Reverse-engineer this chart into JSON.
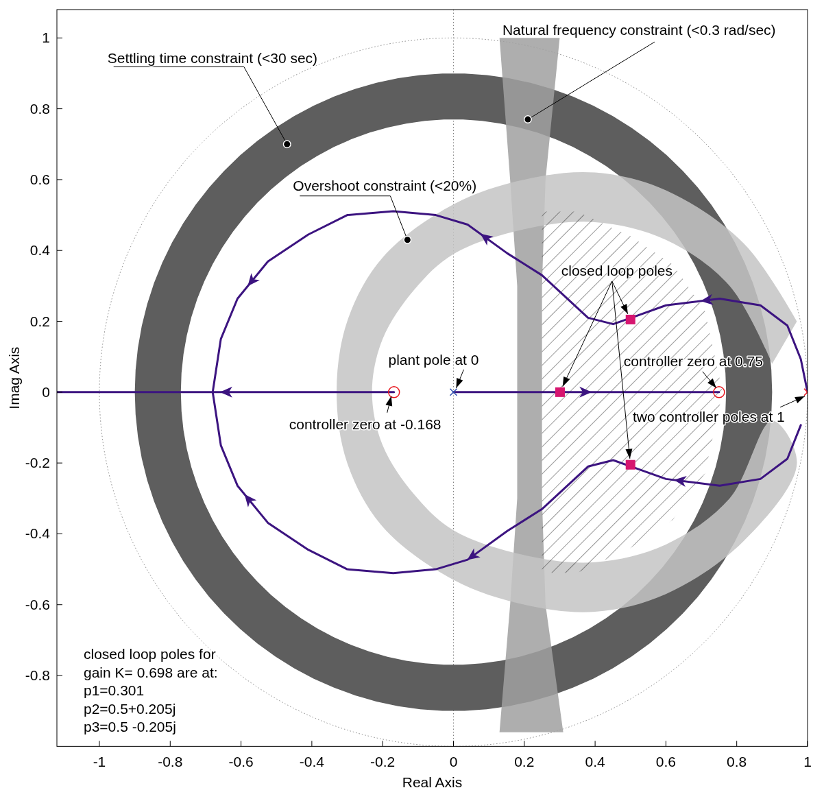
{
  "chart_data": {
    "type": "line",
    "xlabel": "Real Axis",
    "ylabel": "Imag Axis",
    "xlim": [
      -1.12,
      1
    ],
    "ylim": [
      -1,
      1.08
    ],
    "xticks": [
      -1,
      -0.8,
      -0.6,
      -0.4,
      -0.2,
      0,
      0.2,
      0.4,
      0.6,
      0.8,
      1
    ],
    "yticks": [
      -0.8,
      -0.6,
      -0.4,
      -0.2,
      0,
      0.2,
      0.4,
      0.6,
      0.8,
      1
    ],
    "grid": false,
    "ref_lines": [
      {
        "axis": "x",
        "value": 0,
        "color": "#808080",
        "line_style": "dotted"
      }
    ],
    "series": [
      {
        "color": "#3c1480",
        "x": [
          -0.168,
          -1.12
        ],
        "values": [
          0,
          0
        ]
      },
      {
        "color": "#3c1480",
        "x": [
          0,
          0.75
        ],
        "values": [
          0,
          0
        ]
      },
      {
        "color": "#3c1480",
        "x": [
          1,
          0.981,
          0.943,
          0.867,
          0.752,
          0.6,
          0.505,
          0.451,
          0.38,
          0.25,
          0.152,
          0.04,
          -0.05,
          -0.17,
          -0.3,
          -0.41,
          -0.524,
          -0.61,
          -0.657,
          -0.68
        ],
        "values": [
          0,
          0.093,
          0.188,
          0.245,
          0.264,
          0.245,
          0.211,
          0.192,
          0.21,
          0.33,
          0.392,
          0.473,
          0.5,
          0.511,
          0.5,
          0.445,
          0.369,
          0.264,
          0.15,
          0
        ]
      },
      {
        "color": "#3c1480",
        "x": [
          0.981,
          0.943,
          0.867,
          0.752,
          0.6,
          0.505,
          0.451,
          0.38,
          0.25,
          0.152,
          0.04,
          -0.05,
          -0.17,
          -0.3,
          -0.41,
          -0.524,
          -0.61,
          -0.657,
          -0.68
        ],
        "values": [
          -0.093,
          -0.188,
          -0.245,
          -0.264,
          -0.245,
          -0.211,
          -0.192,
          -0.21,
          -0.33,
          -0.392,
          -0.473,
          -0.5,
          -0.511,
          -0.5,
          -0.445,
          -0.369,
          -0.264,
          -0.15,
          0
        ]
      },
      {
        "type": "scatter",
        "color": "#d6156f",
        "marker": "square",
        "x": [
          0.301,
          0.5,
          0.5
        ],
        "values": [
          0,
          0.205,
          -0.205
        ]
      },
      {
        "type": "scatter",
        "color": "#e8141c",
        "marker": "circle",
        "x": [
          -0.168,
          0.75
        ],
        "values": [
          0,
          0
        ]
      },
      {
        "type": "scatter",
        "color": "#3050b0",
        "marker": "cross",
        "x": [
          0
        ],
        "values": [
          0
        ]
      },
      {
        "type": "scatter",
        "color": "#e8141c",
        "marker": "cross",
        "x": [
          1
        ],
        "values": [
          0
        ]
      }
    ],
    "annotations": [
      {
        "text": "Settling time constraint (<30 sec)",
        "x": -0.47,
        "y": 0.7
      },
      {
        "text": "Natural frequency constraint (<0.3 rad/sec)",
        "x": 0.21,
        "y": 0.77
      },
      {
        "text": "Overshoot constraint (<20%)",
        "x": -0.13,
        "y": 0.43
      },
      {
        "text": "closed loop poles",
        "x": 0.5,
        "y": 0.205
      },
      {
        "text": "plant pole at 0",
        "x": 0,
        "y": 0
      },
      {
        "text": "controller zero at 0.75",
        "x": 0.75,
        "y": 0
      },
      {
        "text": "two controller poles  at 1",
        "x": 1,
        "y": 0
      },
      {
        "text": "controller zero at -0.168",
        "x": -0.168,
        "y": 0
      },
      "closed loop poles for\ngain K= 0.698 are at:\np1=0.301\np2=0.5+0.205j\np3=0.5 -0.205j"
    ]
  }
}
